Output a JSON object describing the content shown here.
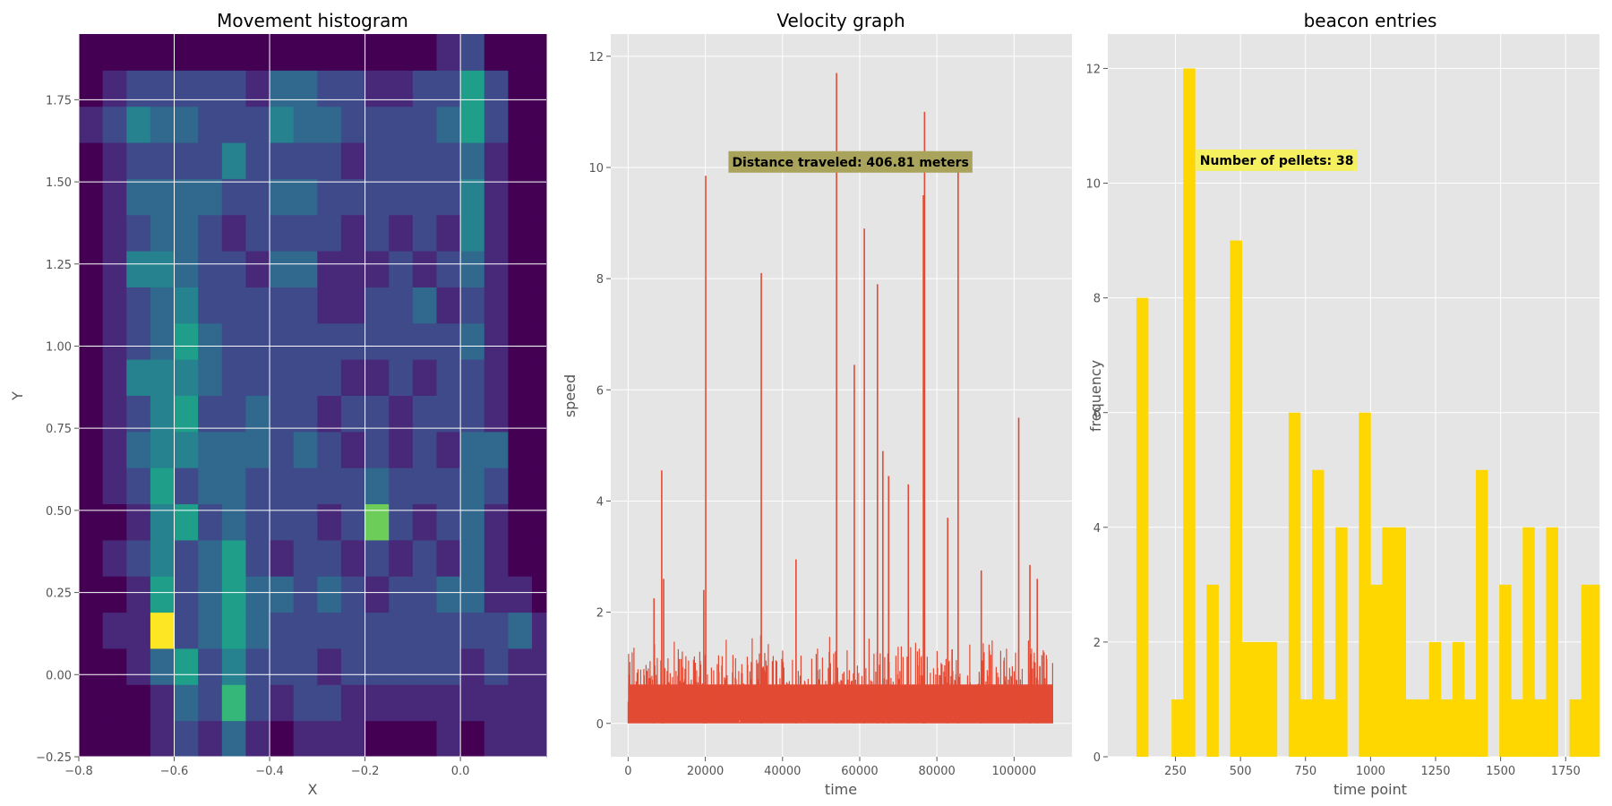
{
  "colors": {
    "panel_bg": "#e5e5e5",
    "grid": "#ffffff",
    "line": "#e24a33",
    "bar": "#ffd700",
    "speed_label_bg": "#a9a35b",
    "pellet_label_bg": "#f4f060",
    "viridis_low": "#440154",
    "viridis_high": "#fde725"
  },
  "chart_data": [
    {
      "type": "heatmap",
      "title": "Movement histogram",
      "xlabel": "X",
      "ylabel": "Y",
      "xlim": [
        -0.8,
        0.18
      ],
      "ylim": [
        -0.25,
        1.95
      ],
      "xticks": [
        -0.8,
        -0.6,
        -0.4,
        -0.2,
        0.0
      ],
      "xtick_labels": [
        "−0.8",
        "−0.6",
        "−0.4",
        "−0.2",
        "0.0"
      ],
      "yticks": [
        -0.25,
        0.0,
        0.25,
        0.5,
        0.75,
        1.0,
        1.25,
        1.5,
        1.75
      ],
      "ytick_labels": [
        "−0.25",
        "0.00",
        "0.25",
        "0.50",
        "0.75",
        "1.00",
        "1.25",
        "1.50",
        "1.75"
      ],
      "x_edges": [
        -0.8,
        -0.75,
        -0.7,
        -0.65,
        -0.6,
        -0.55,
        -0.5,
        -0.45,
        -0.4,
        -0.35,
        -0.3,
        -0.25,
        -0.2,
        -0.15,
        -0.1,
        -0.05,
        0.0,
        0.05,
        0.1,
        0.15,
        0.18
      ],
      "y_edges": [
        -0.25,
        -0.14,
        -0.03,
        0.08,
        0.19,
        0.3,
        0.41,
        0.52,
        0.63,
        0.74,
        0.85,
        0.96,
        1.07,
        1.18,
        1.29,
        1.4,
        1.51,
        1.62,
        1.73,
        1.84,
        1.95
      ],
      "grid": true,
      "counts": [
        [
          0,
          0,
          0,
          1,
          2,
          1,
          3,
          1,
          0,
          1,
          1,
          1,
          0,
          0,
          0,
          1,
          0,
          1,
          1,
          1
        ],
        [
          0,
          0,
          0,
          1,
          3,
          2,
          6,
          2,
          1,
          2,
          2,
          1,
          1,
          1,
          1,
          1,
          1,
          1,
          1,
          1
        ],
        [
          0,
          0,
          1,
          3,
          5,
          2,
          4,
          2,
          2,
          2,
          1,
          2,
          2,
          2,
          2,
          2,
          1,
          2,
          1,
          1
        ],
        [
          0,
          1,
          1,
          9,
          2,
          3,
          5,
          3,
          2,
          2,
          2,
          2,
          2,
          2,
          2,
          2,
          2,
          2,
          3,
          1
        ],
        [
          0,
          0,
          1,
          5,
          2,
          3,
          5,
          3,
          3,
          2,
          3,
          2,
          1,
          2,
          2,
          3,
          3,
          1,
          1,
          0
        ],
        [
          0,
          1,
          2,
          4,
          2,
          3,
          5,
          2,
          1,
          2,
          2,
          1,
          2,
          1,
          2,
          1,
          3,
          1,
          0,
          0
        ],
        [
          0,
          0,
          1,
          4,
          5,
          2,
          3,
          2,
          2,
          2,
          1,
          2,
          7,
          2,
          1,
          2,
          3,
          1,
          0,
          0
        ],
        [
          0,
          1,
          2,
          5,
          2,
          3,
          3,
          2,
          2,
          2,
          2,
          2,
          3,
          2,
          2,
          2,
          3,
          2,
          0,
          0
        ],
        [
          0,
          1,
          3,
          4,
          4,
          3,
          3,
          3,
          2,
          3,
          2,
          1,
          2,
          1,
          2,
          1,
          3,
          3,
          0,
          0
        ],
        [
          0,
          1,
          2,
          4,
          5,
          2,
          2,
          3,
          2,
          2,
          1,
          2,
          2,
          1,
          2,
          2,
          2,
          1,
          0,
          0
        ],
        [
          0,
          1,
          4,
          4,
          4,
          3,
          2,
          2,
          2,
          2,
          2,
          1,
          1,
          2,
          1,
          2,
          2,
          1,
          0,
          0
        ],
        [
          0,
          1,
          2,
          3,
          5,
          3,
          2,
          2,
          2,
          2,
          2,
          2,
          2,
          2,
          2,
          2,
          3,
          1,
          0,
          0
        ],
        [
          0,
          1,
          2,
          3,
          4,
          2,
          2,
          2,
          2,
          2,
          1,
          1,
          2,
          2,
          3,
          1,
          2,
          1,
          0,
          0
        ],
        [
          0,
          1,
          4,
          4,
          3,
          2,
          2,
          1,
          3,
          3,
          1,
          1,
          1,
          2,
          1,
          2,
          3,
          1,
          0,
          0
        ],
        [
          0,
          1,
          2,
          3,
          3,
          2,
          1,
          2,
          2,
          2,
          2,
          1,
          2,
          1,
          2,
          1,
          4,
          1,
          0,
          0
        ],
        [
          0,
          1,
          3,
          3,
          3,
          3,
          2,
          2,
          3,
          3,
          2,
          2,
          2,
          2,
          2,
          2,
          4,
          1,
          0,
          0
        ],
        [
          0,
          1,
          2,
          2,
          2,
          2,
          4,
          2,
          2,
          2,
          2,
          1,
          2,
          2,
          2,
          2,
          3,
          1,
          0,
          0
        ],
        [
          1,
          2,
          4,
          3,
          3,
          2,
          2,
          2,
          4,
          3,
          3,
          2,
          2,
          2,
          2,
          3,
          5,
          2,
          0,
          0
        ],
        [
          0,
          1,
          2,
          2,
          2,
          2,
          2,
          1,
          3,
          3,
          2,
          2,
          1,
          1,
          2,
          2,
          5,
          2,
          0,
          0
        ],
        [
          0,
          0,
          0,
          0,
          0,
          0,
          0,
          0,
          0,
          0,
          0,
          0,
          0,
          0,
          0,
          1,
          2,
          0,
          0,
          0
        ]
      ]
    },
    {
      "type": "line",
      "title": "Velocity graph",
      "xlabel": "time",
      "ylabel": "speed",
      "xlim": [
        -4500,
        115000
      ],
      "ylim": [
        -0.6,
        12.4
      ],
      "xticks": [
        0,
        20000,
        40000,
        60000,
        80000,
        100000
      ],
      "xtick_labels": [
        "0",
        "20000",
        "40000",
        "60000",
        "80000",
        "100000"
      ],
      "yticks": [
        0,
        2,
        4,
        6,
        8,
        10,
        12
      ],
      "ytick_labels": [
        "0",
        "2",
        "4",
        "6",
        "8",
        "10",
        "12"
      ],
      "grid": true,
      "time_range": [
        0,
        110000
      ],
      "baseline_noise_max": 1.5,
      "peaks": [
        {
          "x": 6700,
          "y": 2.25
        },
        {
          "x": 8700,
          "y": 4.55
        },
        {
          "x": 9200,
          "y": 2.6
        },
        {
          "x": 20100,
          "y": 9.85
        },
        {
          "x": 19600,
          "y": 2.4
        },
        {
          "x": 34500,
          "y": 8.1
        },
        {
          "x": 43500,
          "y": 2.95
        },
        {
          "x": 54000,
          "y": 11.7
        },
        {
          "x": 58600,
          "y": 6.45
        },
        {
          "x": 61200,
          "y": 8.9
        },
        {
          "x": 64600,
          "y": 7.9
        },
        {
          "x": 66000,
          "y": 4.9
        },
        {
          "x": 67500,
          "y": 4.45
        },
        {
          "x": 72600,
          "y": 4.3
        },
        {
          "x": 76500,
          "y": 9.5
        },
        {
          "x": 76800,
          "y": 11.0
        },
        {
          "x": 82800,
          "y": 3.7
        },
        {
          "x": 85500,
          "y": 10.05
        },
        {
          "x": 91500,
          "y": 2.75
        },
        {
          "x": 101200,
          "y": 5.5
        },
        {
          "x": 104100,
          "y": 2.85
        },
        {
          "x": 106000,
          "y": 2.6
        }
      ],
      "annotation": "Distance traveled: 406.81 meters",
      "annotation_at": {
        "x": 26000,
        "y": 10.1
      }
    },
    {
      "type": "bar",
      "title": "beacon entries",
      "xlabel": "time point",
      "ylabel": "frequency",
      "xlim": [
        -10,
        1880
      ],
      "ylim": [
        0,
        12.6
      ],
      "xticks": [
        250,
        500,
        750,
        1000,
        1250,
        1500,
        1750
      ],
      "xtick_labels": [
        "250",
        "500",
        "750",
        "1000",
        "1250",
        "1500",
        "1750"
      ],
      "yticks": [
        0,
        2,
        4,
        6,
        8,
        10,
        12
      ],
      "ytick_labels": [
        "0",
        "2",
        "4",
        "6",
        "8",
        "10",
        "12"
      ],
      "grid": true,
      "bins": [
        {
          "x0": 100,
          "x1": 145,
          "v": 8
        },
        {
          "x0": 235,
          "x1": 280,
          "v": 1
        },
        {
          "x0": 280,
          "x1": 325,
          "v": 12
        },
        {
          "x0": 370,
          "x1": 415,
          "v": 3
        },
        {
          "x0": 460,
          "x1": 505,
          "v": 9
        },
        {
          "x0": 505,
          "x1": 550,
          "v": 2
        },
        {
          "x0": 550,
          "x1": 595,
          "v": 2
        },
        {
          "x0": 595,
          "x1": 640,
          "v": 2
        },
        {
          "x0": 685,
          "x1": 730,
          "v": 6
        },
        {
          "x0": 730,
          "x1": 775,
          "v": 1
        },
        {
          "x0": 775,
          "x1": 820,
          "v": 5
        },
        {
          "x0": 820,
          "x1": 865,
          "v": 1
        },
        {
          "x0": 865,
          "x1": 910,
          "v": 4
        },
        {
          "x0": 955,
          "x1": 1000,
          "v": 6
        },
        {
          "x0": 1000,
          "x1": 1045,
          "v": 3
        },
        {
          "x0": 1045,
          "x1": 1090,
          "v": 4
        },
        {
          "x0": 1090,
          "x1": 1135,
          "v": 4
        },
        {
          "x0": 1135,
          "x1": 1180,
          "v": 1
        },
        {
          "x0": 1180,
          "x1": 1225,
          "v": 1
        },
        {
          "x0": 1225,
          "x1": 1270,
          "v": 2
        },
        {
          "x0": 1270,
          "x1": 1315,
          "v": 1
        },
        {
          "x0": 1315,
          "x1": 1360,
          "v": 2
        },
        {
          "x0": 1360,
          "x1": 1405,
          "v": 1
        },
        {
          "x0": 1405,
          "x1": 1450,
          "v": 5
        },
        {
          "x0": 1495,
          "x1": 1540,
          "v": 3
        },
        {
          "x0": 1540,
          "x1": 1585,
          "v": 1
        },
        {
          "x0": 1585,
          "x1": 1630,
          "v": 4
        },
        {
          "x0": 1630,
          "x1": 1675,
          "v": 1
        },
        {
          "x0": 1675,
          "x1": 1720,
          "v": 4
        },
        {
          "x0": 1765,
          "x1": 1810,
          "v": 1
        },
        {
          "x0": 1810,
          "x1": 1855,
          "v": 3
        },
        {
          "x0": 1855,
          "x1": 1880,
          "v": 3
        }
      ],
      "annotation": "Number of pellets: 38",
      "annotation_at": {
        "x": 330,
        "y": 10.4
      }
    }
  ]
}
